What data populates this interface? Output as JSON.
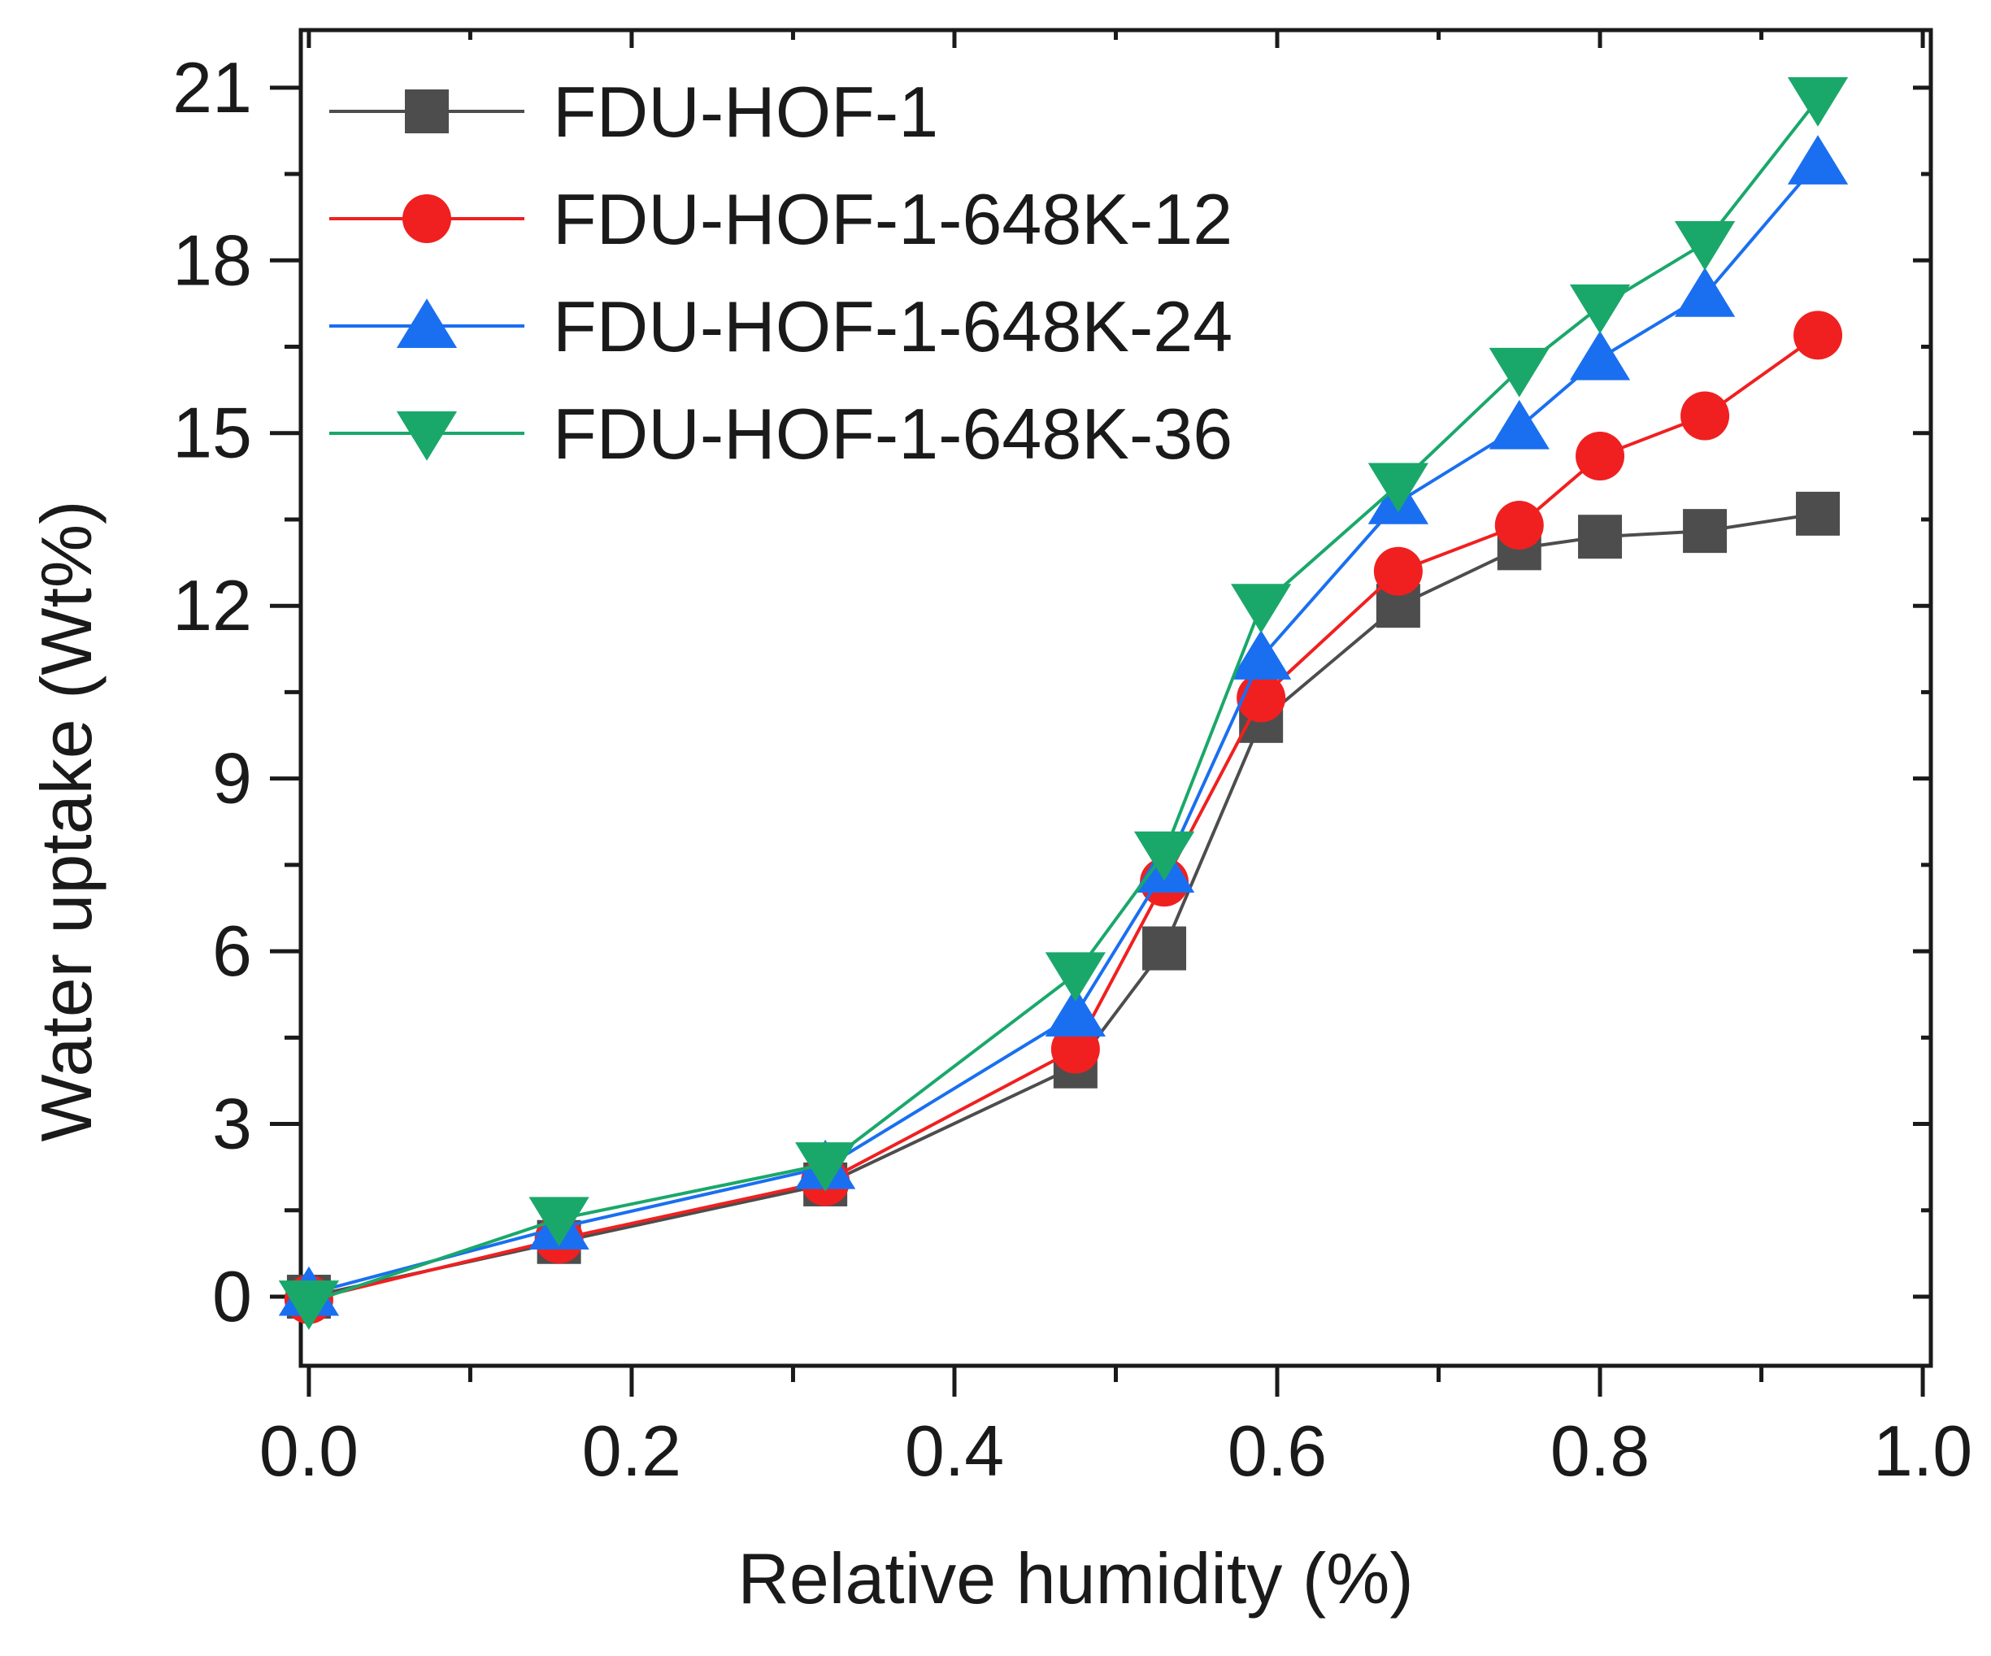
{
  "chart_data": {
    "type": "line",
    "xlabel": "Relative humidity (%)",
    "ylabel": "Water uptake (Wt%)",
    "xlim": [
      -0.005,
      1.005
    ],
    "ylim": [
      -1.2,
      22.0
    ],
    "xticks": [
      0.0,
      0.2,
      0.4,
      0.6,
      0.8,
      1.0
    ],
    "xtick_labels": [
      "0.0",
      "0.2",
      "0.4",
      "0.6",
      "0.8",
      "1.0"
    ],
    "yticks": [
      0,
      3,
      6,
      9,
      12,
      15,
      18,
      21
    ],
    "ytick_labels": [
      "0",
      "3",
      "6",
      "9",
      "12",
      "15",
      "18",
      "21"
    ],
    "grid": false,
    "legend_position": "top-left",
    "series": [
      {
        "name": "FDU-HOF-1",
        "color": "#4d4d4d",
        "marker": "square",
        "x": [
          0.0,
          0.155,
          0.32,
          0.475,
          0.53,
          0.59,
          0.675,
          0.75,
          0.8,
          0.865,
          0.935
        ],
        "y": [
          0.0,
          0.95,
          1.95,
          4.0,
          6.05,
          10.0,
          12.0,
          13.0,
          13.2,
          13.3,
          13.6
        ]
      },
      {
        "name": "FDU-HOF-1-648K-12",
        "color": "#f02020",
        "marker": "circle",
        "x": [
          0.0,
          0.155,
          0.32,
          0.475,
          0.53,
          0.59,
          0.675,
          0.75,
          0.8,
          0.865,
          0.935
        ],
        "y": [
          -0.05,
          1.0,
          2.0,
          4.3,
          7.2,
          10.4,
          12.6,
          13.4,
          14.6,
          15.3,
          16.7
        ]
      },
      {
        "name": "FDU-HOF-1-648K-24",
        "color": "#1a6ff0",
        "marker": "triangle-up",
        "x": [
          0.0,
          0.155,
          0.32,
          0.475,
          0.53,
          0.59,
          0.675,
          0.75,
          0.8,
          0.865,
          0.935
        ],
        "y": [
          0.05,
          1.2,
          2.25,
          4.9,
          7.4,
          11.1,
          13.8,
          15.1,
          16.3,
          17.4,
          19.7
        ]
      },
      {
        "name": "FDU-HOF-1-648K-36",
        "color": "#1aa86a",
        "marker": "triangle-down",
        "x": [
          0.0,
          0.155,
          0.32,
          0.475,
          0.53,
          0.59,
          0.675,
          0.75,
          0.8,
          0.865,
          0.935
        ],
        "y": [
          -0.1,
          1.35,
          2.3,
          5.6,
          7.7,
          12.0,
          14.1,
          16.1,
          17.2,
          18.3,
          20.8
        ]
      }
    ]
  }
}
